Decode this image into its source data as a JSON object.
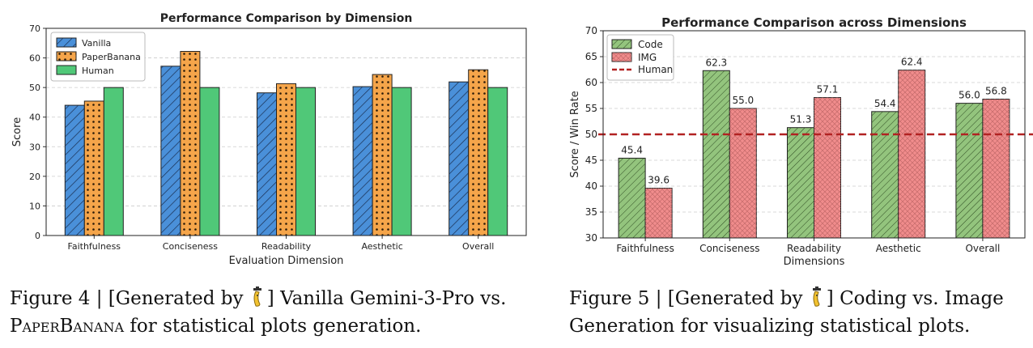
{
  "chart_data": [
    {
      "type": "bar",
      "title": "Performance Comparison by Dimension",
      "xlabel": "Evaluation Dimension",
      "ylabel": "Score",
      "ylim": [
        0,
        70
      ],
      "yticks": [
        0,
        10,
        20,
        30,
        40,
        50,
        60,
        70
      ],
      "grid": true,
      "legend_position": "top-left",
      "categories": [
        "Faithfulness",
        "Conciseness",
        "Readability",
        "Aesthetic",
        "Overall"
      ],
      "series": [
        {
          "name": "Vanilla",
          "color": "#4a90d9",
          "pattern": "hatch",
          "values": [
            44.0,
            57.2,
            48.2,
            50.3,
            51.9
          ]
        },
        {
          "name": "PaperBanana",
          "color": "#f5a54a",
          "pattern": "dots",
          "values": [
            45.4,
            62.2,
            51.3,
            54.4,
            56.0
          ]
        },
        {
          "name": "Human",
          "color": "#50c878",
          "pattern": "solid",
          "values": [
            50,
            50,
            50,
            50,
            50
          ]
        }
      ]
    },
    {
      "type": "bar",
      "title": "Performance Comparison across Dimensions",
      "xlabel": "Dimensions",
      "ylabel": "Score / Win Rate",
      "ylim": [
        30,
        70
      ],
      "yticks": [
        30,
        35,
        40,
        45,
        50,
        55,
        60,
        65,
        70
      ],
      "grid": true,
      "legend_position": "top-left",
      "categories": [
        "Faithfulness",
        "Conciseness",
        "Readability",
        "Aesthetic",
        "Overall"
      ],
      "series": [
        {
          "name": "Code",
          "color": "#93c47d",
          "pattern": "hatch",
          "values": [
            45.4,
            62.3,
            51.3,
            54.4,
            56.0
          ],
          "labels": [
            "45.4",
            "62.3",
            "51.3",
            "54.4",
            "56.0"
          ]
        },
        {
          "name": "IMG",
          "color": "#f08c8c",
          "pattern": "crosshatch",
          "values": [
            39.6,
            55.0,
            57.1,
            62.4,
            56.8
          ],
          "labels": [
            "39.6",
            "55.0",
            "57.1",
            "62.4",
            "56.8"
          ]
        }
      ],
      "reference_line": {
        "name": "Human",
        "value": 50,
        "color": "#b22222",
        "style": "dashed"
      }
    }
  ],
  "captions": {
    "left": {
      "prefix": "Figure 4 | [Generated by ",
      "middle": "] Vanilla Gemini-3-Pro vs. ",
      "brand": "PaperBanana",
      "suffix": " for statistical plots generation."
    },
    "right": {
      "prefix": "Figure 5 | [Generated by ",
      "suffix": "] Coding vs. Image Generation for visualizing statistical plots."
    },
    "logo_icon": "banana-mascot-icon"
  }
}
